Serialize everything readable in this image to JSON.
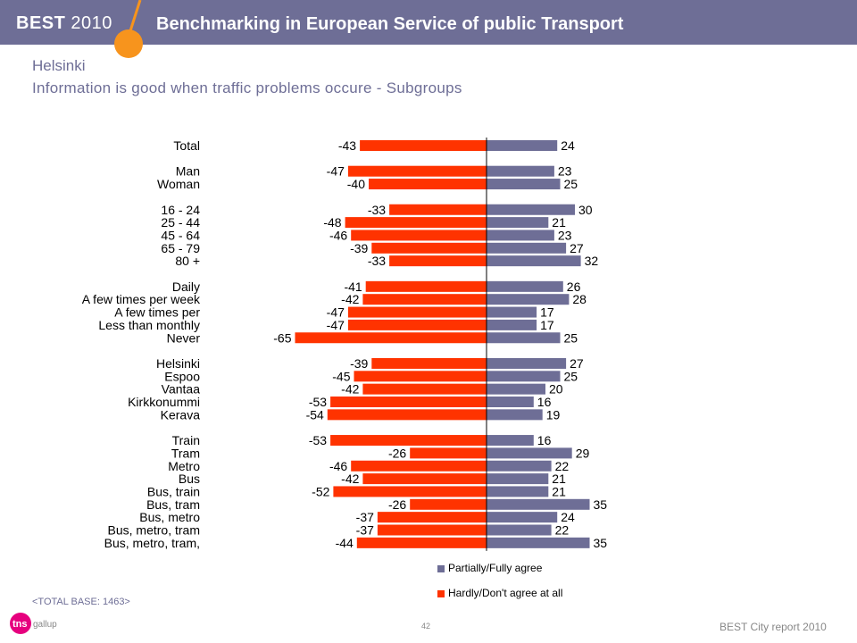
{
  "header": {
    "logo_best": "BEST",
    "logo_year": "2010",
    "title": "Benchmarking in European Service of public Transport"
  },
  "city": "Helsinki",
  "subtitle": "Information is good when traffic problems occure - Subgroups",
  "colors": {
    "header_bg": "#6e6e96",
    "agree": "#6e6e96",
    "disagree": "#ff3300",
    "accent": "#f7941d",
    "title_text": "#6e6e96"
  },
  "chart_data": {
    "type": "bar",
    "orientation": "horizontal-diverging",
    "categories": [
      "Total",
      "Man",
      "Woman",
      "16 - 24",
      "25 - 44",
      "45 - 64",
      "65 - 79",
      "80 +",
      "Daily",
      "A few times per week",
      "A few times per",
      "Less than monthly",
      "Never",
      "Helsinki",
      "Espoo",
      "Vantaa",
      "Kirkkonummi",
      "Kerava",
      "Train",
      "Tram",
      "Metro",
      "Bus",
      "Bus, train",
      "Bus, tram",
      "Bus, metro",
      "Bus, metro, tram",
      "Bus, metro, tram,"
    ],
    "groups": [
      [
        0
      ],
      [
        1,
        2
      ],
      [
        3,
        4,
        5,
        6,
        7
      ],
      [
        8,
        9,
        10,
        11,
        12
      ],
      [
        13,
        14,
        15,
        16,
        17
      ],
      [
        18,
        19,
        20,
        21,
        22,
        23,
        24,
        25,
        26
      ]
    ],
    "series": [
      {
        "name": "Hardly/Don't agree at all",
        "color": "#ff3300",
        "values": [
          -43,
          -47,
          -40,
          -33,
          -48,
          -46,
          -39,
          -33,
          -41,
          -42,
          -47,
          -47,
          -65,
          -39,
          -45,
          -42,
          -53,
          -54,
          -53,
          -26,
          -46,
          -42,
          -52,
          -26,
          -37,
          -37,
          -44
        ]
      },
      {
        "name": "Partially/Fully agree",
        "color": "#6e6e96",
        "values": [
          24,
          23,
          25,
          30,
          21,
          23,
          27,
          32,
          26,
          28,
          17,
          17,
          25,
          27,
          25,
          20,
          16,
          19,
          16,
          29,
          22,
          21,
          21,
          35,
          24,
          22,
          35
        ]
      }
    ],
    "legend_position": "bottom-right",
    "grid": false
  },
  "legend": {
    "agree": "Partially/Fully agree",
    "disagree": "Hardly/Don't agree at all"
  },
  "base_note": "<TOTAL BASE: 1463>",
  "tns_logo": {
    "tns": "tns",
    "gallup": "gallup"
  },
  "page_number": "42",
  "footer": "BEST City report 2010"
}
